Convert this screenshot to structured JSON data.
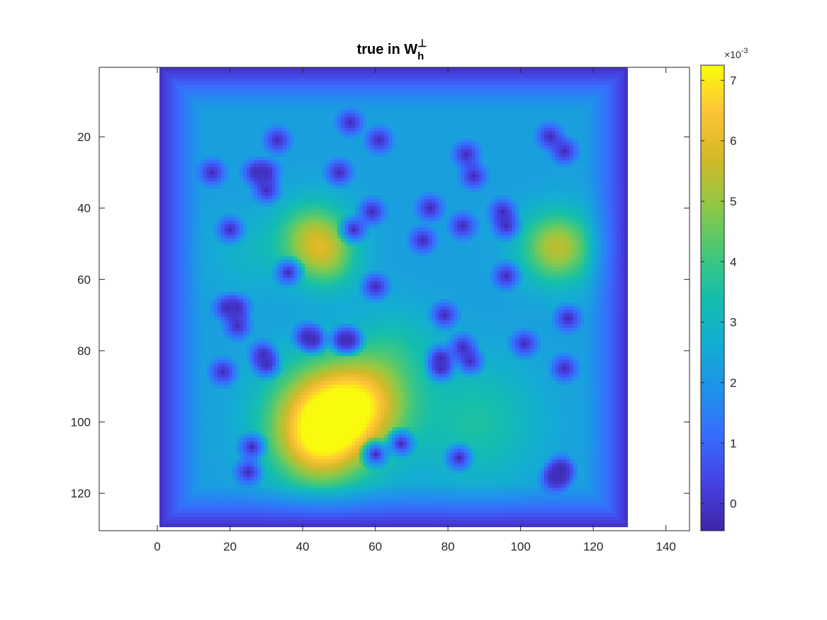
{
  "chart_data": {
    "type": "heatmap",
    "title": "true in W",
    "title_subscript": "h",
    "title_superscript": "⊥",
    "xlim": [
      -16,
      146.5
    ],
    "ylim": [
      0.5,
      130.5
    ],
    "y_reversed": true,
    "image_extent_x": [
      0.5,
      129.5
    ],
    "image_extent_y": [
      0.5,
      129.5
    ],
    "x_ticks": [
      0,
      20,
      40,
      60,
      80,
      100,
      120,
      140
    ],
    "y_ticks": [
      20,
      40,
      60,
      80,
      100,
      120
    ],
    "colormap": "parula",
    "clim": [
      -0.00045,
      0.00725
    ],
    "colorbar": {
      "ticks": [
        0,
        1,
        2,
        3,
        4,
        5,
        6,
        7
      ],
      "exponent_label": "×10",
      "exponent_value": "-3"
    },
    "background_level": 0.0025,
    "bumps": [
      {
        "x": 46,
        "y": 99,
        "amp": 0.0046,
        "r": 11
      },
      {
        "x": 58,
        "y": 94,
        "amp": 0.0025,
        "r": 9
      },
      {
        "x": 44,
        "y": 108,
        "amp": 0.0016,
        "r": 8
      },
      {
        "x": 43,
        "y": 48,
        "amp": 0.0028,
        "r": 7
      },
      {
        "x": 47,
        "y": 55,
        "amp": 0.0016,
        "r": 6
      },
      {
        "x": 110,
        "y": 51,
        "amp": 0.0032,
        "r": 7
      },
      {
        "x": 88,
        "y": 100,
        "amp": 0.0013,
        "r": 12
      },
      {
        "x": 66,
        "y": 78,
        "amp": 0.0009,
        "r": 8
      },
      {
        "x": 25,
        "y": 53,
        "amp": 0.0006,
        "r": 8
      }
    ],
    "dips": [
      [
        53,
        16
      ],
      [
        61,
        21
      ],
      [
        33,
        21
      ],
      [
        15,
        30
      ],
      [
        27,
        30
      ],
      [
        30,
        30
      ],
      [
        30,
        35
      ],
      [
        50,
        30
      ],
      [
        85,
        25
      ],
      [
        87,
        31
      ],
      [
        108,
        20
      ],
      [
        112,
        24
      ],
      [
        20,
        46
      ],
      [
        59,
        41
      ],
      [
        54,
        46
      ],
      [
        75,
        40
      ],
      [
        84,
        45
      ],
      [
        95,
        41
      ],
      [
        96,
        45
      ],
      [
        73,
        49
      ],
      [
        36,
        58
      ],
      [
        60,
        62
      ],
      [
        96,
        59
      ],
      [
        19,
        68
      ],
      [
        22,
        68
      ],
      [
        22,
        73
      ],
      [
        79,
        70
      ],
      [
        113,
        71
      ],
      [
        41,
        76
      ],
      [
        43,
        77
      ],
      [
        51,
        77
      ],
      [
        53,
        77
      ],
      [
        29,
        81
      ],
      [
        30,
        84
      ],
      [
        18,
        86
      ],
      [
        78,
        82
      ],
      [
        78,
        85
      ],
      [
        84,
        79
      ],
      [
        86,
        83
      ],
      [
        101,
        78
      ],
      [
        112,
        85
      ],
      [
        26,
        107
      ],
      [
        25,
        114
      ],
      [
        60,
        109
      ],
      [
        67,
        106
      ],
      [
        83,
        110
      ],
      [
        109,
        116
      ],
      [
        111,
        115
      ],
      [
        111,
        113
      ]
    ]
  }
}
